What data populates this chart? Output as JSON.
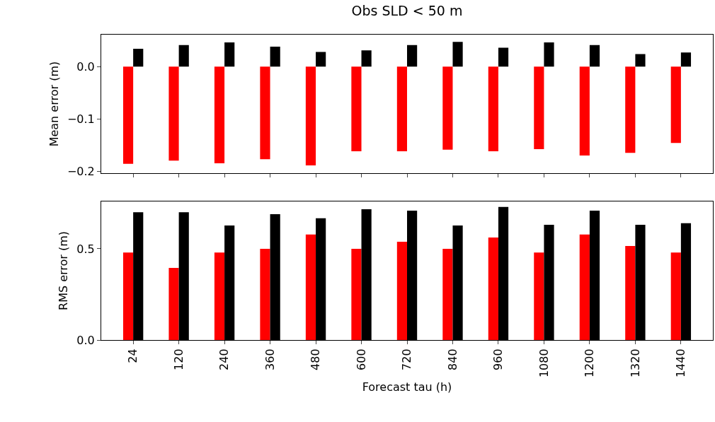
{
  "chart_data": [
    {
      "type": "bar",
      "title": "Obs SLD < 50 m",
      "ylabel": "Mean error (m)",
      "tick_labels": "y",
      "categories": [
        "24",
        "120",
        "240",
        "360",
        "480",
        "600",
        "720",
        "840",
        "960",
        "1080",
        "1200",
        "1320",
        "1440"
      ],
      "series": [
        {
          "color": "#ff0000",
          "values": [
            -0.186,
            -0.18,
            -0.185,
            -0.177,
            -0.189,
            -0.162,
            -0.162,
            -0.159,
            -0.162,
            -0.158,
            -0.17,
            -0.165,
            -0.146
          ]
        },
        {
          "color": "#000000",
          "values": [
            0.034,
            0.041,
            0.046,
            0.038,
            0.028,
            0.031,
            0.041,
            0.047,
            0.036,
            0.046,
            0.041,
            0.024,
            0.027
          ]
        }
      ],
      "ylim": [
        -0.204,
        0.061
      ],
      "yticks": [
        {
          "value": -0.2,
          "label": "−0.2"
        },
        {
          "value": -0.1,
          "label": "−0.1"
        },
        {
          "value": 0.0,
          "label": "0.0"
        }
      ]
    },
    {
      "type": "bar",
      "ylabel": "RMS error (m)",
      "xlabel": "Forecast tau (h)",
      "categories": [
        "24",
        "120",
        "240",
        "360",
        "480",
        "600",
        "720",
        "840",
        "960",
        "1080",
        "1200",
        "1320",
        "1440"
      ],
      "series": [
        {
          "color": "#ff0000",
          "values": [
            0.48,
            0.395,
            0.48,
            0.5,
            0.578,
            0.5,
            0.539,
            0.5,
            0.562,
            0.48,
            0.578,
            0.515,
            0.48
          ]
        },
        {
          "color": "#000000",
          "values": [
            0.7,
            0.7,
            0.628,
            0.69,
            0.667,
            0.717,
            0.709,
            0.628,
            0.729,
            0.632,
            0.709,
            0.632,
            0.64
          ]
        }
      ],
      "ylim": [
        0,
        0.76
      ],
      "yticks": [
        {
          "value": 0.0,
          "label": "0.0"
        },
        {
          "value": 0.5,
          "label": "0.5"
        }
      ]
    }
  ]
}
